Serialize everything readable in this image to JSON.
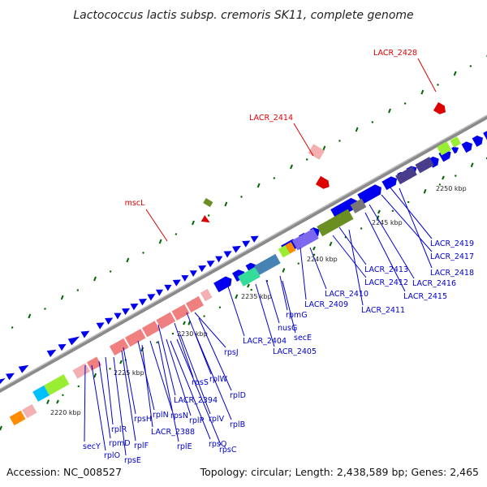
{
  "title": "Lactococcus lactis subsp. cremoris SK11, complete genome",
  "footer": {
    "accession": "Accession: NC_008527",
    "summary": "Topology: circular; Length: 2,438,589 bp; Genes: 2,465"
  },
  "colors": {
    "forward_cds": "#0000ee",
    "label_blue": "#0000cc",
    "label_red": "#dd0000",
    "backbone": "#888888",
    "tick": "#006600",
    "rrna_pink": "#f08080",
    "light_pink": "#f4b0b0",
    "olive": "#6b8e23",
    "lime": "#99ee33",
    "orange": "#ff8c00",
    "cyan": "#00bfff",
    "aqua_green": "#33dd99",
    "steel_blue": "#4682b4",
    "purple": "#7b68ee",
    "dark_slate": "#483d8b",
    "gray": "#777777",
    "magenta": "#ff1493"
  },
  "ticks": [
    {
      "label": "2220 kbp"
    },
    {
      "label": "2225 kbp"
    },
    {
      "label": "2230 kbp"
    },
    {
      "label": "2235 kbp"
    },
    {
      "label": "2240 kbp"
    },
    {
      "label": "2245 kbp"
    },
    {
      "label": "2250 kbp"
    }
  ],
  "outer_labels": [
    {
      "name": "LACR_2428"
    },
    {
      "name": "LACR_2414"
    },
    {
      "name": "mscL"
    }
  ],
  "inner_labels": [
    {
      "name": "LACR_2419"
    },
    {
      "name": "LACR_2417"
    },
    {
      "name": "LACR_2418"
    },
    {
      "name": "LACR_2416"
    },
    {
      "name": "LACR_2413"
    },
    {
      "name": "LACR_2412"
    },
    {
      "name": "LACR_2415"
    },
    {
      "name": "LACR_2410"
    },
    {
      "name": "LACR_2409"
    },
    {
      "name": "LACR_2411"
    },
    {
      "name": "rpmG"
    },
    {
      "name": "nusG"
    },
    {
      "name": "secE"
    },
    {
      "name": "LACR_2404"
    },
    {
      "name": "LACR_2405"
    },
    {
      "name": "rpsJ"
    },
    {
      "name": "rplW"
    },
    {
      "name": "rpsS"
    },
    {
      "name": "rplD"
    },
    {
      "name": "LACR_2394"
    },
    {
      "name": "rplB"
    },
    {
      "name": "rplV"
    },
    {
      "name": "rplP"
    },
    {
      "name": "rpsN"
    },
    {
      "name": "rplN"
    },
    {
      "name": "rpsH"
    },
    {
      "name": "LACR_2388"
    },
    {
      "name": "rplR"
    },
    {
      "name": "rpsQ"
    },
    {
      "name": "rpsC"
    },
    {
      "name": "rpmD"
    },
    {
      "name": "rplF"
    },
    {
      "name": "rplE"
    },
    {
      "name": "secY"
    },
    {
      "name": "rplO"
    },
    {
      "name": "rpsE"
    }
  ]
}
